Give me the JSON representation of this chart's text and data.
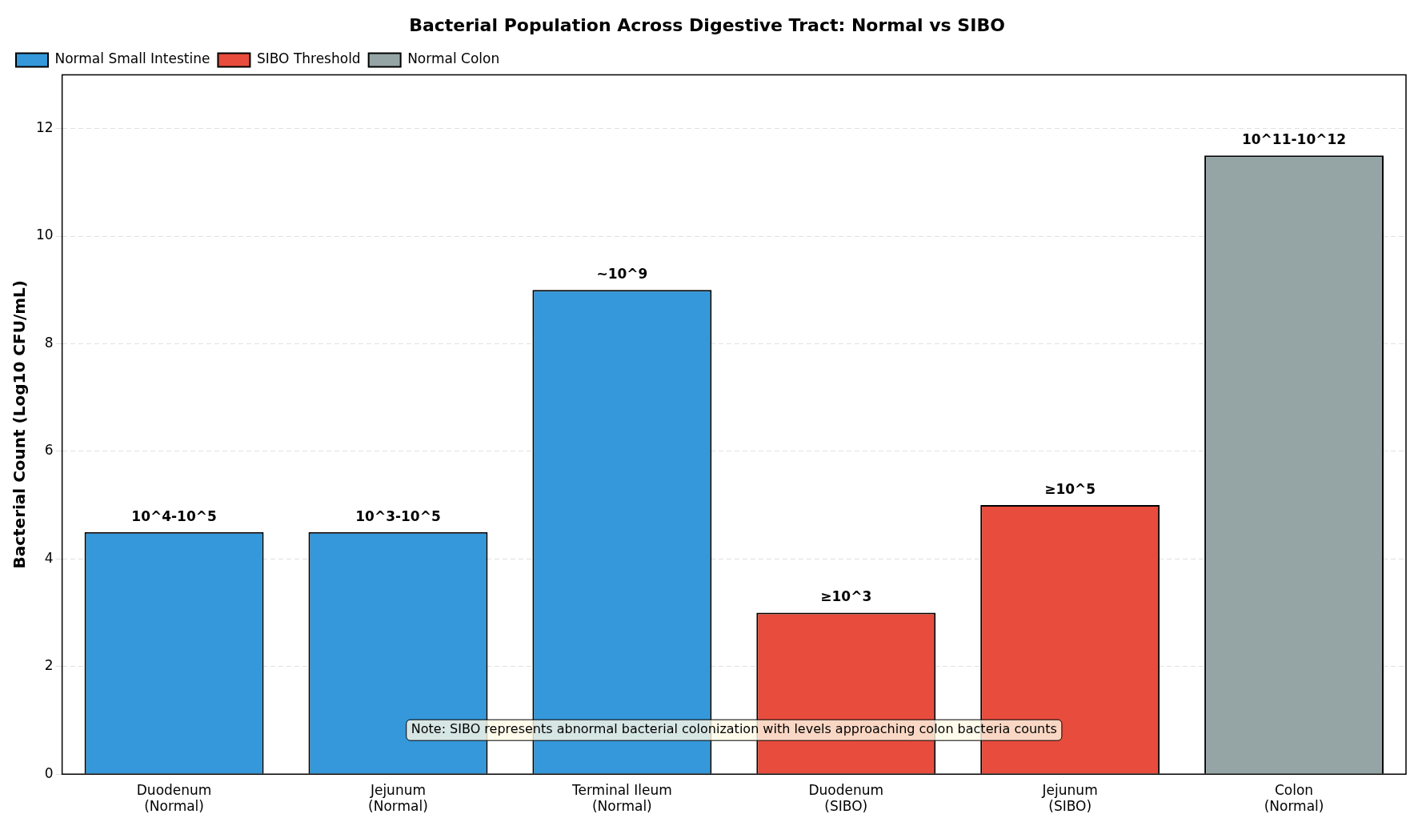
{
  "chart_data": {
    "type": "bar",
    "title": "Bacterial Population Across Digestive Tract: Normal vs SIBO",
    "ylabel": "Bacterial Count (Log10 CFU/mL)",
    "categories": [
      "Duodenum\n(Normal)",
      "Jejunum\n(Normal)",
      "Terminal Ileum\n(Normal)",
      "Duodenum\n(SIBO)",
      "Jejunum\n(SIBO)",
      "Colon\n(Normal)"
    ],
    "series": [
      {
        "name": "Normal Small Intestine",
        "color": "#3498db",
        "values": [
          4.5,
          4.5,
          9,
          null,
          null,
          null
        ],
        "value_labels": [
          "10^4-10^5",
          "10^3-10^5",
          "~10^9",
          null,
          null,
          null
        ]
      },
      {
        "name": "SIBO Threshold",
        "color": "#e74c3c",
        "values": [
          null,
          null,
          null,
          3,
          5,
          null
        ],
        "value_labels": [
          null,
          null,
          null,
          "≥10^3",
          "≥10^5",
          null
        ]
      },
      {
        "name": "Normal Colon",
        "color": "#95a5a6",
        "values": [
          null,
          null,
          null,
          null,
          null,
          11.5
        ],
        "value_labels": [
          null,
          null,
          null,
          null,
          null,
          "10^11-10^12"
        ]
      }
    ],
    "ylim": [
      0,
      13
    ],
    "yticks": [
      0,
      2,
      4,
      6,
      8,
      10,
      12
    ],
    "grid": "y",
    "legend": "top left",
    "annotations": [
      "Note: SIBO represents abnormal bacterial colonization with levels approaching colon bacteria counts"
    ]
  }
}
